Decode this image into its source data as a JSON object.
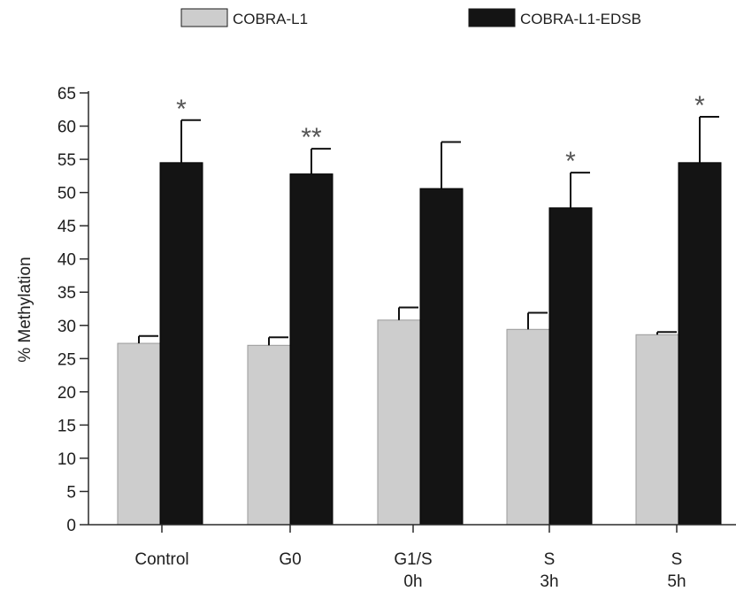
{
  "chart_data": {
    "type": "bar",
    "title": "",
    "xlabel": "",
    "ylabel": "% Methylation",
    "ylim": [
      0,
      65
    ],
    "yticks": [
      0,
      5,
      10,
      15,
      20,
      25,
      30,
      35,
      40,
      45,
      50,
      55,
      60,
      65
    ],
    "grid": false,
    "legend_position": "top",
    "categories": [
      [
        "Control"
      ],
      [
        "G0"
      ],
      [
        "G1/S",
        "0h"
      ],
      [
        "S",
        "3h"
      ],
      [
        "S",
        "5h"
      ]
    ],
    "series": [
      {
        "name": "COBRA-L1",
        "color": "#cdcdcd",
        "values": [
          27.3,
          27.0,
          30.8,
          29.4,
          28.6
        ],
        "errors": [
          1.1,
          1.2,
          1.9,
          2.5,
          0.4
        ],
        "annotations": [
          "",
          "",
          "",
          "",
          ""
        ]
      },
      {
        "name": "COBRA-L1-EDSB",
        "color": "#141414",
        "values": [
          54.5,
          52.8,
          50.6,
          47.7,
          54.5
        ],
        "errors": [
          6.4,
          3.8,
          7.0,
          5.3,
          6.9
        ],
        "annotations": [
          "*",
          "**",
          "",
          "*",
          "*"
        ]
      }
    ]
  }
}
